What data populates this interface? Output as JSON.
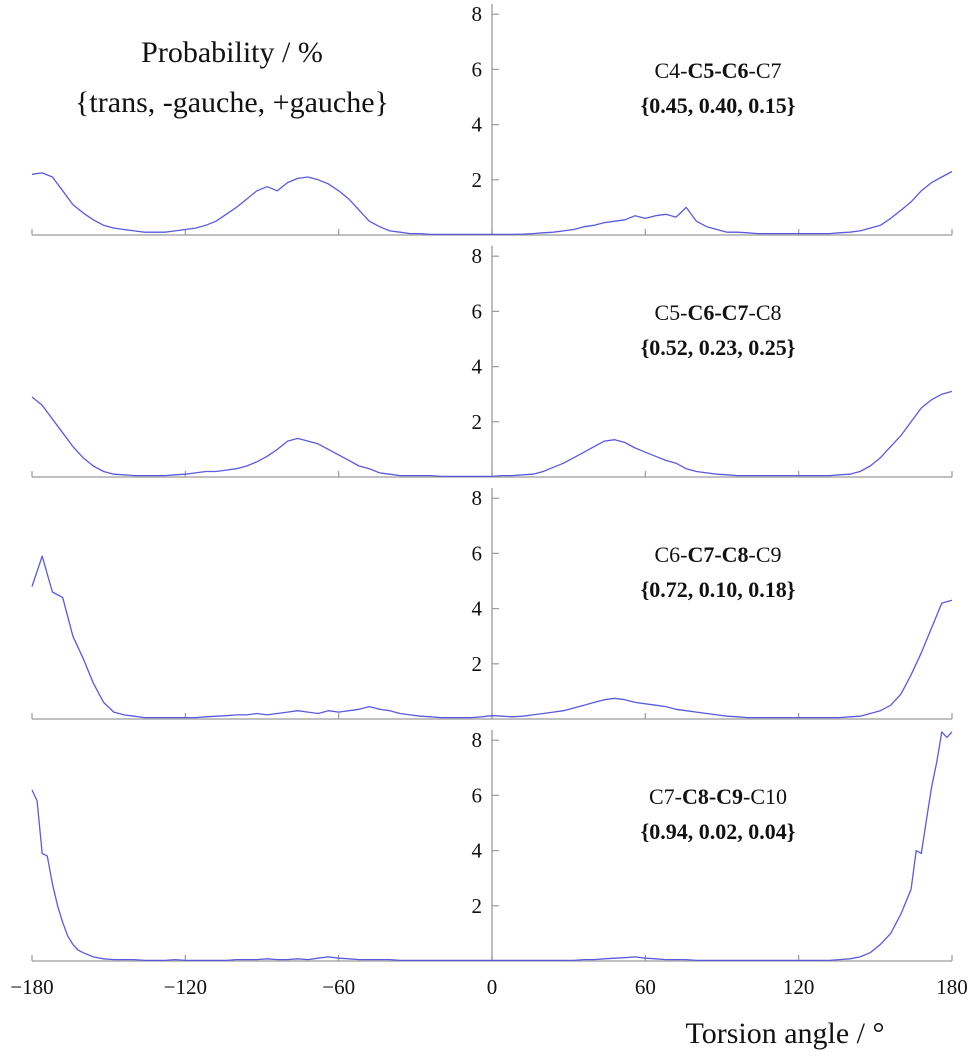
{
  "chart_data": {
    "type": "line",
    "legend": {
      "line1": "Probability / %",
      "line2": "{trans, -gauche, +gauche}"
    },
    "xlabel": "Torsion angle / °",
    "xlim": [
      -180,
      180
    ],
    "ylim": [
      0,
      8.5
    ],
    "xticks": [
      -180,
      -120,
      -60,
      0,
      60,
      120,
      180
    ],
    "xtick_labels": [
      "−180",
      "−120",
      "−60",
      "0",
      "60",
      "120",
      "180"
    ],
    "yticks": [
      2,
      4,
      6,
      8
    ],
    "ytick_labels": [
      "2",
      "4",
      "6",
      "8"
    ],
    "line_color": "#5a5ae0",
    "axis_color": "#9a9a9a",
    "panels": [
      {
        "title_parts": [
          {
            "text": "C4-",
            "bold": false
          },
          {
            "text": "C5-C6",
            "bold": true
          },
          {
            "text": "-C7",
            "bold": false
          }
        ],
        "values_label": "{0.45, 0.40, 0.15}",
        "x": [
          -180,
          -176,
          -172,
          -168,
          -164,
          -160,
          -156,
          -152,
          -148,
          -144,
          -140,
          -136,
          -132,
          -128,
          -124,
          -120,
          -116,
          -112,
          -108,
          -104,
          -100,
          -96,
          -92,
          -88,
          -84,
          -80,
          -76,
          -72,
          -68,
          -64,
          -60,
          -56,
          -52,
          -48,
          -44,
          -40,
          -36,
          -32,
          -28,
          -24,
          -20,
          -16,
          -12,
          -8,
          -4,
          0,
          4,
          8,
          12,
          16,
          20,
          24,
          28,
          32,
          36,
          40,
          44,
          48,
          52,
          56,
          60,
          64,
          68,
          72,
          76,
          80,
          84,
          88,
          92,
          96,
          100,
          104,
          108,
          112,
          116,
          120,
          124,
          128,
          132,
          136,
          140,
          144,
          148,
          152,
          156,
          160,
          164,
          168,
          172,
          176,
          180
        ],
        "y": [
          2.2,
          2.25,
          2.1,
          1.6,
          1.1,
          0.8,
          0.55,
          0.35,
          0.25,
          0.2,
          0.15,
          0.1,
          0.1,
          0.1,
          0.15,
          0.2,
          0.25,
          0.35,
          0.5,
          0.75,
          1.0,
          1.3,
          1.6,
          1.75,
          1.6,
          1.9,
          2.05,
          2.1,
          2.0,
          1.85,
          1.6,
          1.3,
          0.9,
          0.5,
          0.3,
          0.15,
          0.1,
          0.05,
          0.05,
          0.02,
          0.02,
          0.02,
          0.02,
          0.02,
          0.02,
          0.02,
          0.02,
          0.02,
          0.03,
          0.05,
          0.08,
          0.1,
          0.15,
          0.2,
          0.3,
          0.35,
          0.45,
          0.5,
          0.55,
          0.7,
          0.6,
          0.7,
          0.75,
          0.65,
          1.0,
          0.5,
          0.3,
          0.2,
          0.1,
          0.1,
          0.08,
          0.05,
          0.05,
          0.05,
          0.05,
          0.05,
          0.05,
          0.05,
          0.05,
          0.08,
          0.1,
          0.15,
          0.25,
          0.35,
          0.6,
          0.9,
          1.2,
          1.6,
          1.9,
          2.1,
          2.3
        ]
      },
      {
        "title_parts": [
          {
            "text": "C5-",
            "bold": false
          },
          {
            "text": "C6-C7",
            "bold": true
          },
          {
            "text": "-C8",
            "bold": false
          }
        ],
        "values_label": "{0.52, 0.23, 0.25}",
        "x": [
          -180,
          -176,
          -172,
          -168,
          -164,
          -160,
          -156,
          -152,
          -148,
          -144,
          -140,
          -136,
          -132,
          -128,
          -124,
          -120,
          -116,
          -112,
          -108,
          -104,
          -100,
          -96,
          -92,
          -88,
          -84,
          -80,
          -76,
          -72,
          -68,
          -64,
          -60,
          -56,
          -52,
          -48,
          -44,
          -40,
          -36,
          -32,
          -28,
          -24,
          -20,
          -16,
          -12,
          -8,
          -4,
          0,
          4,
          8,
          12,
          16,
          20,
          24,
          28,
          32,
          36,
          40,
          44,
          48,
          52,
          56,
          60,
          64,
          68,
          72,
          76,
          80,
          84,
          88,
          92,
          96,
          100,
          104,
          108,
          112,
          116,
          120,
          124,
          128,
          132,
          136,
          140,
          144,
          148,
          152,
          156,
          160,
          164,
          168,
          172,
          176,
          180
        ],
        "y": [
          2.9,
          2.6,
          2.1,
          1.6,
          1.1,
          0.7,
          0.4,
          0.2,
          0.1,
          0.08,
          0.05,
          0.05,
          0.05,
          0.05,
          0.08,
          0.1,
          0.15,
          0.2,
          0.2,
          0.25,
          0.3,
          0.4,
          0.55,
          0.75,
          1.0,
          1.3,
          1.4,
          1.3,
          1.2,
          1.0,
          0.8,
          0.6,
          0.4,
          0.3,
          0.15,
          0.1,
          0.05,
          0.05,
          0.05,
          0.05,
          0.02,
          0.02,
          0.02,
          0.02,
          0.02,
          0.02,
          0.05,
          0.05,
          0.08,
          0.1,
          0.2,
          0.35,
          0.5,
          0.7,
          0.9,
          1.1,
          1.3,
          1.35,
          1.25,
          1.05,
          0.9,
          0.75,
          0.6,
          0.5,
          0.3,
          0.2,
          0.15,
          0.1,
          0.08,
          0.05,
          0.05,
          0.05,
          0.05,
          0.05,
          0.05,
          0.05,
          0.05,
          0.05,
          0.05,
          0.08,
          0.1,
          0.2,
          0.4,
          0.7,
          1.1,
          1.5,
          2.0,
          2.5,
          2.8,
          3.0,
          3.1
        ]
      },
      {
        "title_parts": [
          {
            "text": "C6-",
            "bold": false
          },
          {
            "text": "C7-C8",
            "bold": true
          },
          {
            "text": "-C9",
            "bold": false
          }
        ],
        "values_label": "{0.72, 0.10, 0.18}",
        "x": [
          -180,
          -176,
          -172,
          -168,
          -164,
          -160,
          -156,
          -152,
          -148,
          -144,
          -140,
          -136,
          -132,
          -128,
          -124,
          -120,
          -116,
          -112,
          -108,
          -104,
          -100,
          -96,
          -92,
          -88,
          -84,
          -80,
          -76,
          -72,
          -68,
          -64,
          -60,
          -56,
          -52,
          -48,
          -44,
          -40,
          -36,
          -32,
          -28,
          -24,
          -20,
          -16,
          -12,
          -8,
          -4,
          0,
          4,
          8,
          12,
          16,
          20,
          24,
          28,
          32,
          36,
          40,
          44,
          48,
          52,
          56,
          60,
          64,
          68,
          72,
          76,
          80,
          84,
          88,
          92,
          96,
          100,
          104,
          108,
          112,
          116,
          120,
          124,
          128,
          132,
          136,
          140,
          144,
          148,
          152,
          156,
          160,
          164,
          168,
          172,
          176,
          180
        ],
        "y": [
          4.8,
          5.9,
          4.6,
          4.4,
          3.0,
          2.2,
          1.3,
          0.6,
          0.25,
          0.15,
          0.1,
          0.05,
          0.05,
          0.05,
          0.05,
          0.05,
          0.05,
          0.08,
          0.1,
          0.12,
          0.15,
          0.15,
          0.2,
          0.15,
          0.2,
          0.25,
          0.3,
          0.25,
          0.2,
          0.3,
          0.25,
          0.3,
          0.35,
          0.45,
          0.35,
          0.3,
          0.2,
          0.15,
          0.1,
          0.08,
          0.05,
          0.05,
          0.05,
          0.05,
          0.08,
          0.12,
          0.1,
          0.08,
          0.1,
          0.15,
          0.2,
          0.25,
          0.3,
          0.4,
          0.5,
          0.6,
          0.7,
          0.75,
          0.7,
          0.6,
          0.55,
          0.5,
          0.45,
          0.35,
          0.3,
          0.25,
          0.2,
          0.15,
          0.1,
          0.08,
          0.05,
          0.05,
          0.05,
          0.05,
          0.05,
          0.05,
          0.05,
          0.05,
          0.05,
          0.05,
          0.08,
          0.1,
          0.2,
          0.3,
          0.5,
          0.9,
          1.6,
          2.4,
          3.3,
          4.2,
          4.3
        ]
      },
      {
        "title_parts": [
          {
            "text": "C7-",
            "bold": false
          },
          {
            "text": "C8-C9",
            "bold": true
          },
          {
            "text": "-C10",
            "bold": false
          }
        ],
        "values_label": "{0.94, 0.02, 0.04}",
        "x": [
          -180,
          -178,
          -176,
          -174,
          -172,
          -170,
          -168,
          -166,
          -164,
          -162,
          -160,
          -156,
          -152,
          -148,
          -144,
          -140,
          -136,
          -132,
          -128,
          -124,
          -120,
          -116,
          -112,
          -108,
          -104,
          -100,
          -96,
          -92,
          -88,
          -84,
          -80,
          -76,
          -72,
          -68,
          -64,
          -60,
          -56,
          -52,
          -48,
          -44,
          -40,
          -36,
          -32,
          -28,
          -24,
          -20,
          -16,
          -12,
          -8,
          -4,
          0,
          4,
          8,
          12,
          16,
          20,
          24,
          28,
          32,
          36,
          40,
          44,
          48,
          52,
          56,
          60,
          64,
          68,
          72,
          76,
          80,
          84,
          88,
          92,
          96,
          100,
          104,
          108,
          112,
          116,
          120,
          124,
          128,
          132,
          136,
          140,
          144,
          148,
          152,
          156,
          160,
          164,
          166,
          168,
          170,
          172,
          174,
          176,
          178,
          180
        ],
        "y": [
          6.2,
          5.8,
          3.9,
          3.8,
          2.8,
          2.0,
          1.4,
          0.9,
          0.6,
          0.4,
          0.3,
          0.15,
          0.08,
          0.05,
          0.05,
          0.05,
          0.02,
          0.02,
          0.02,
          0.05,
          0.02,
          0.02,
          0.02,
          0.02,
          0.02,
          0.05,
          0.05,
          0.05,
          0.08,
          0.05,
          0.05,
          0.08,
          0.05,
          0.1,
          0.15,
          0.1,
          0.08,
          0.05,
          0.05,
          0.05,
          0.05,
          0.02,
          0.02,
          0.02,
          0.02,
          0.02,
          0.02,
          0.02,
          0.02,
          0.02,
          0.02,
          0.02,
          0.02,
          0.02,
          0.02,
          0.02,
          0.02,
          0.02,
          0.02,
          0.05,
          0.05,
          0.08,
          0.1,
          0.12,
          0.15,
          0.1,
          0.08,
          0.05,
          0.05,
          0.05,
          0.02,
          0.02,
          0.02,
          0.02,
          0.02,
          0.02,
          0.02,
          0.02,
          0.02,
          0.02,
          0.02,
          0.02,
          0.02,
          0.02,
          0.05,
          0.08,
          0.15,
          0.3,
          0.6,
          1.0,
          1.7,
          2.6,
          4.0,
          3.9,
          5.1,
          6.3,
          7.2,
          8.3,
          8.1,
          8.3
        ]
      }
    ]
  }
}
